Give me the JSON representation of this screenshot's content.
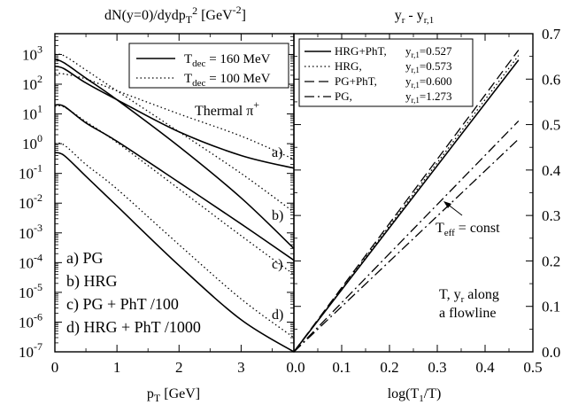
{
  "chart_data": [
    {
      "type": "line",
      "title": "dN(y=0)/dydp_T^2 [GeV^-2]",
      "xlabel": "p_T [GeV]",
      "ylabel": "",
      "yscale": "log",
      "xlim": [
        0,
        3.85
      ],
      "ylim": [
        1e-07,
        5000
      ],
      "x_ticks": [
        "0",
        "1",
        "2",
        "3"
      ],
      "x_tick_values": [
        0,
        1,
        2,
        3
      ],
      "y_ticks": [
        {
          "base": "10",
          "exp": "3"
        },
        {
          "base": "10",
          "exp": "2"
        },
        {
          "base": "10",
          "exp": "1"
        },
        {
          "base": "10",
          "exp": "0"
        },
        {
          "base": "10",
          "exp": "-1"
        },
        {
          "base": "10",
          "exp": "-2"
        },
        {
          "base": "10",
          "exp": "-3"
        },
        {
          "base": "10",
          "exp": "-4"
        },
        {
          "base": "10",
          "exp": "-5"
        },
        {
          "base": "10",
          "exp": "-6"
        },
        {
          "base": "10",
          "exp": "-7"
        }
      ],
      "y_tick_values": [
        1000,
        100,
        10,
        1,
        0.1,
        0.01,
        0.001,
        0.0001,
        1e-05,
        1e-06,
        1e-07
      ],
      "legend": {
        "position": "top-right",
        "entries": [
          {
            "label_main": "T",
            "label_sub": "dec",
            "label_rest": " = 160 MeV",
            "style": "solid"
          },
          {
            "label_main": "T",
            "label_sub": "dec",
            "label_rest": " = 100 MeV",
            "style": "dotted"
          }
        ]
      },
      "annotation_pi": {
        "text": "Thermal π",
        "sup": "+"
      },
      "curve_labels": [
        "a)",
        "b)",
        "c)",
        "d)"
      ],
      "case_labels": [
        "a) PG",
        "b) HRG",
        "c) PG + PhT /100",
        "d) HRG + PhT /1000"
      ],
      "series": [
        {
          "label": "a)",
          "style": "solid",
          "x": [
            0,
            0.15,
            0.5,
            1.0,
            2.0,
            3.0,
            3.85
          ],
          "y": [
            400,
            330,
            110,
            30,
            2.5,
            0.4,
            0.15
          ]
        },
        {
          "label": "a)",
          "style": "dotted",
          "x": [
            0,
            0.15,
            0.5,
            1.0,
            2.0,
            3.0,
            3.85
          ],
          "y": [
            230,
            220,
            150,
            60,
            10,
            1.8,
            0.3
          ]
        },
        {
          "label": "b)",
          "style": "solid",
          "x": [
            0,
            0.15,
            0.5,
            1.0,
            2.0,
            3.0,
            3.85
          ],
          "y": [
            700,
            520,
            160,
            30,
            0.8,
            0.015,
            0.0003
          ]
        },
        {
          "label": "b)",
          "style": "dotted",
          "x": [
            0,
            0.15,
            0.5,
            1.0,
            2.0,
            3.0,
            3.85
          ],
          "y": [
            1000,
            900,
            300,
            60,
            2.5,
            0.1,
            0.005
          ]
        },
        {
          "label": "c)",
          "style": "solid",
          "x": [
            0,
            0.15,
            0.5,
            1.0,
            2.0,
            3.0,
            3.85
          ],
          "y": [
            20,
            18,
            5,
            1.2,
            0.05,
            0.002,
            0.00012
          ]
        },
        {
          "label": "c)",
          "style": "dotted",
          "x": [
            0,
            0.15,
            0.5,
            1.0,
            2.0,
            3.0,
            3.85
          ],
          "y": [
            18,
            17,
            5.5,
            1.1,
            0.03,
            0.0008,
            4e-05
          ]
        },
        {
          "label": "d)",
          "style": "solid",
          "x": [
            0,
            0.15,
            0.5,
            1.0,
            2.0,
            3.0,
            3.85
          ],
          "y": [
            0.5,
            0.4,
            0.08,
            0.008,
            8e-05,
            1.2e-06,
            1e-07
          ]
        },
        {
          "label": "d)",
          "style": "dotted",
          "x": [
            0,
            0.15,
            0.5,
            1.0,
            2.0,
            3.0,
            3.85
          ],
          "y": [
            1.0,
            0.9,
            0.2,
            0.03,
            0.0004,
            6e-06,
            3e-07
          ]
        }
      ]
    },
    {
      "type": "line",
      "title_main": "y",
      "title_sub1": "r",
      "title_mid": " - y",
      "title_sub2": "r,1",
      "xlabel_main": "log(T",
      "xlabel_sub": "1",
      "xlabel_rest": "/T)",
      "ylabel": "",
      "xlim": [
        0,
        0.5
      ],
      "ylim": [
        0,
        0.7
      ],
      "x_ticks": [
        "0.0",
        "0.1",
        "0.2",
        "0.3",
        "0.4",
        "0.5"
      ],
      "x_tick_values": [
        0,
        0.1,
        0.2,
        0.3,
        0.4,
        0.5
      ],
      "y_ticks": [
        "0.0",
        "0.1",
        "0.2",
        "0.3",
        "0.4",
        "0.5",
        "0.6",
        "0.7"
      ],
      "y_tick_values": [
        0,
        0.1,
        0.2,
        0.3,
        0.4,
        0.5,
        0.6,
        0.7
      ],
      "legend": {
        "position": "top-left",
        "entries": [
          {
            "name": "HRG+PhT,",
            "yr_label": "y",
            "yr_sub": "r,1",
            "yr_value": "=0.527",
            "style": "solid"
          },
          {
            "name": "HRG,",
            "yr_label": "y",
            "yr_sub": "r,1",
            "yr_value": "=0.573",
            "style": "dotted"
          },
          {
            "name": "PG+PhT,",
            "yr_label": "y",
            "yr_sub": "r,1",
            "yr_value": "=0.600",
            "style": "dashed"
          },
          {
            "name": "PG,",
            "yr_label": "y",
            "yr_sub": "r,1",
            "yr_value": "=1.273",
            "style": "dashdot"
          }
        ]
      },
      "annotation_teff": {
        "main": "T",
        "sub": "eff",
        "rest": " = const"
      },
      "annotation_flow": [
        "T, y",
        "r",
        " along",
        "a flowline"
      ],
      "series": [
        {
          "name": "HRG+PhT",
          "style": "solid",
          "x": [
            0,
            0.47
          ],
          "y": [
            0,
            0.642
          ]
        },
        {
          "name": "HRG",
          "style": "dotted",
          "x": [
            0,
            0.47
          ],
          "y": [
            0,
            0.652
          ]
        },
        {
          "name": "PG+PhT",
          "style": "dashed",
          "x": [
            0,
            0.47
          ],
          "y": [
            0,
            0.664
          ]
        },
        {
          "name": "PG",
          "style": "dashdot",
          "x": [
            0,
            0.47
          ],
          "y": [
            0,
            0.508
          ]
        },
        {
          "name": "Teff = const",
          "style": "dashdot",
          "x": [
            0,
            0.47
          ],
          "y": [
            0,
            0.468
          ]
        }
      ]
    }
  ]
}
